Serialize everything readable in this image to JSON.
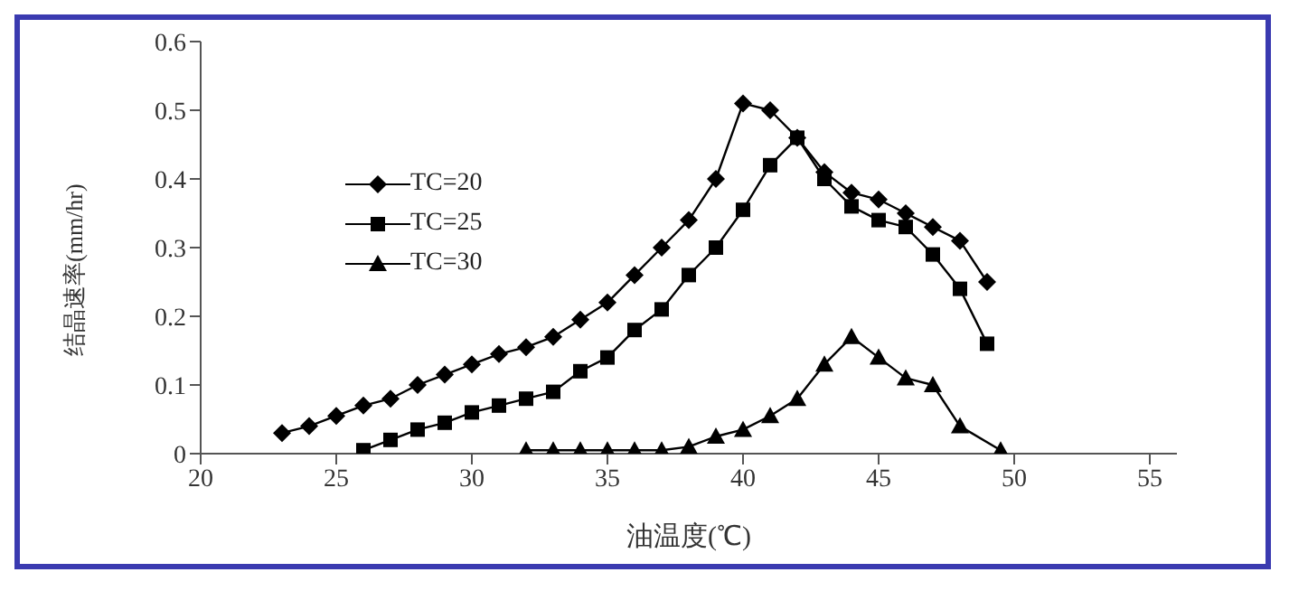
{
  "chart_data": {
    "type": "line",
    "xlabel": "油温度(℃)",
    "ylabel": "结晶速率(mm/hr)",
    "xlim": [
      20,
      56
    ],
    "xticks": [
      20,
      25,
      30,
      35,
      40,
      45,
      50,
      55
    ],
    "ylim": [
      0,
      0.6
    ],
    "yticks": [
      0,
      0.1,
      0.2,
      0.3,
      0.4,
      0.5,
      0.6
    ],
    "grid": false,
    "legend": "top left",
    "series": [
      {
        "name": "TC=20",
        "color": "#000000",
        "marker": "diamond",
        "x": [
          23,
          24,
          25,
          26,
          27,
          28,
          29,
          30,
          31,
          32,
          33,
          34,
          35,
          36,
          37,
          38,
          39,
          40,
          41,
          42,
          43,
          44,
          45,
          46,
          47,
          48,
          49
        ],
        "values": [
          0.03,
          0.04,
          0.055,
          0.07,
          0.08,
          0.1,
          0.115,
          0.13,
          0.145,
          0.155,
          0.17,
          0.195,
          0.22,
          0.26,
          0.3,
          0.34,
          0.4,
          0.51,
          0.5,
          0.46,
          0.41,
          0.38,
          0.37,
          0.35,
          0.33,
          0.31,
          0.25
        ]
      },
      {
        "name": "TC=25",
        "color": "#000000",
        "marker": "square",
        "x": [
          26,
          27,
          28,
          29,
          30,
          31,
          32,
          33,
          34,
          35,
          36,
          37,
          38,
          39,
          40,
          41,
          42,
          43,
          44,
          45,
          46,
          47,
          48,
          49
        ],
        "values": [
          0.005,
          0.02,
          0.035,
          0.045,
          0.06,
          0.07,
          0.08,
          0.09,
          0.12,
          0.14,
          0.18,
          0.21,
          0.26,
          0.3,
          0.355,
          0.42,
          0.46,
          0.4,
          0.36,
          0.34,
          0.33,
          0.29,
          0.24,
          0.16
        ]
      },
      {
        "name": "TC=30",
        "color": "#000000",
        "marker": "triangle",
        "x": [
          32,
          33,
          34,
          35,
          36,
          37,
          38,
          39,
          40,
          41,
          42,
          43,
          44,
          45,
          46,
          47,
          48,
          49.5
        ],
        "values": [
          0.005,
          0.005,
          0.005,
          0.005,
          0.005,
          0.005,
          0.01,
          0.025,
          0.035,
          0.055,
          0.08,
          0.13,
          0.17,
          0.14,
          0.11,
          0.1,
          0.04,
          0.005
        ]
      }
    ]
  }
}
